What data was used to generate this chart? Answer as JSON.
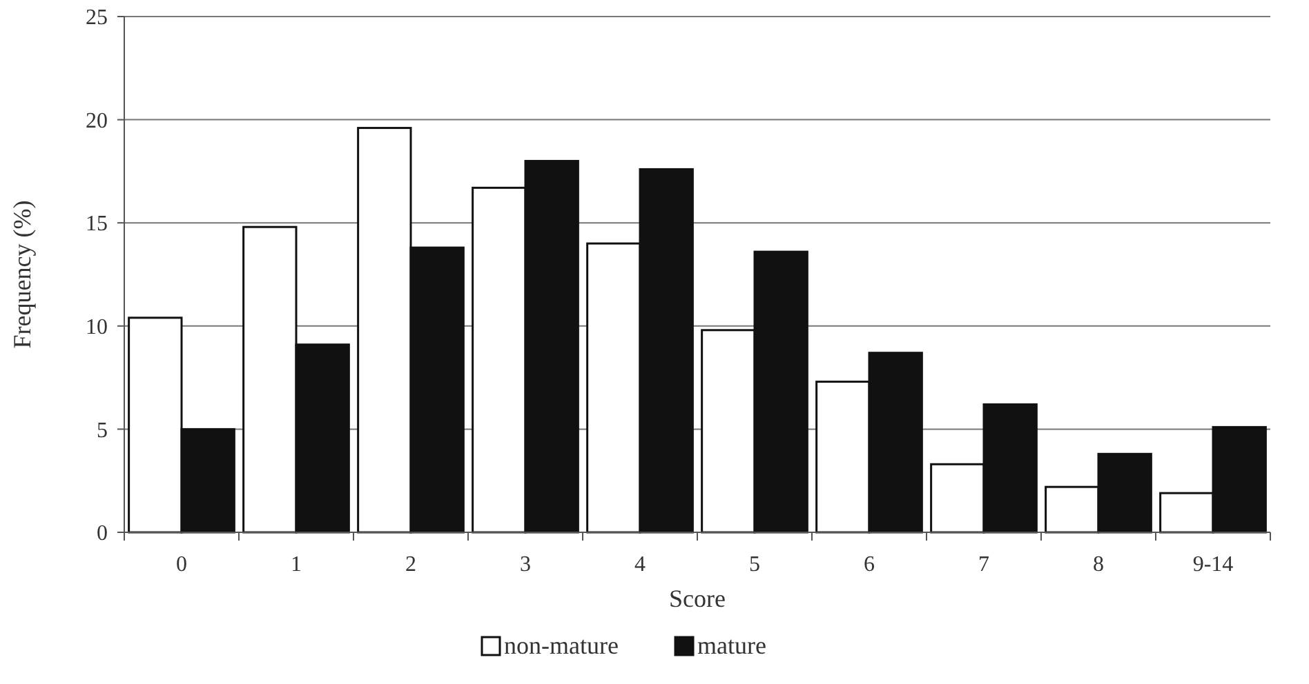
{
  "chart_data": {
    "type": "bar",
    "xlabel": "Score",
    "ylabel": "Frequency (%)",
    "categories": [
      "0",
      "1",
      "2",
      "3",
      "4",
      "5",
      "6",
      "7",
      "8",
      "9-14"
    ],
    "series": [
      {
        "name": "non-mature",
        "color": "#ffffff",
        "values": [
          10.4,
          14.8,
          19.6,
          16.7,
          14.0,
          9.8,
          7.3,
          3.3,
          2.2,
          1.9
        ]
      },
      {
        "name": "mature",
        "color": "#111111",
        "values": [
          5.0,
          9.1,
          13.8,
          18.0,
          17.6,
          13.6,
          8.7,
          6.2,
          3.8,
          5.1
        ]
      }
    ],
    "ylim": [
      0,
      25
    ],
    "yticks": [
      0,
      5,
      10,
      15,
      20,
      25
    ],
    "grid": "y",
    "legend": "bottom"
  }
}
